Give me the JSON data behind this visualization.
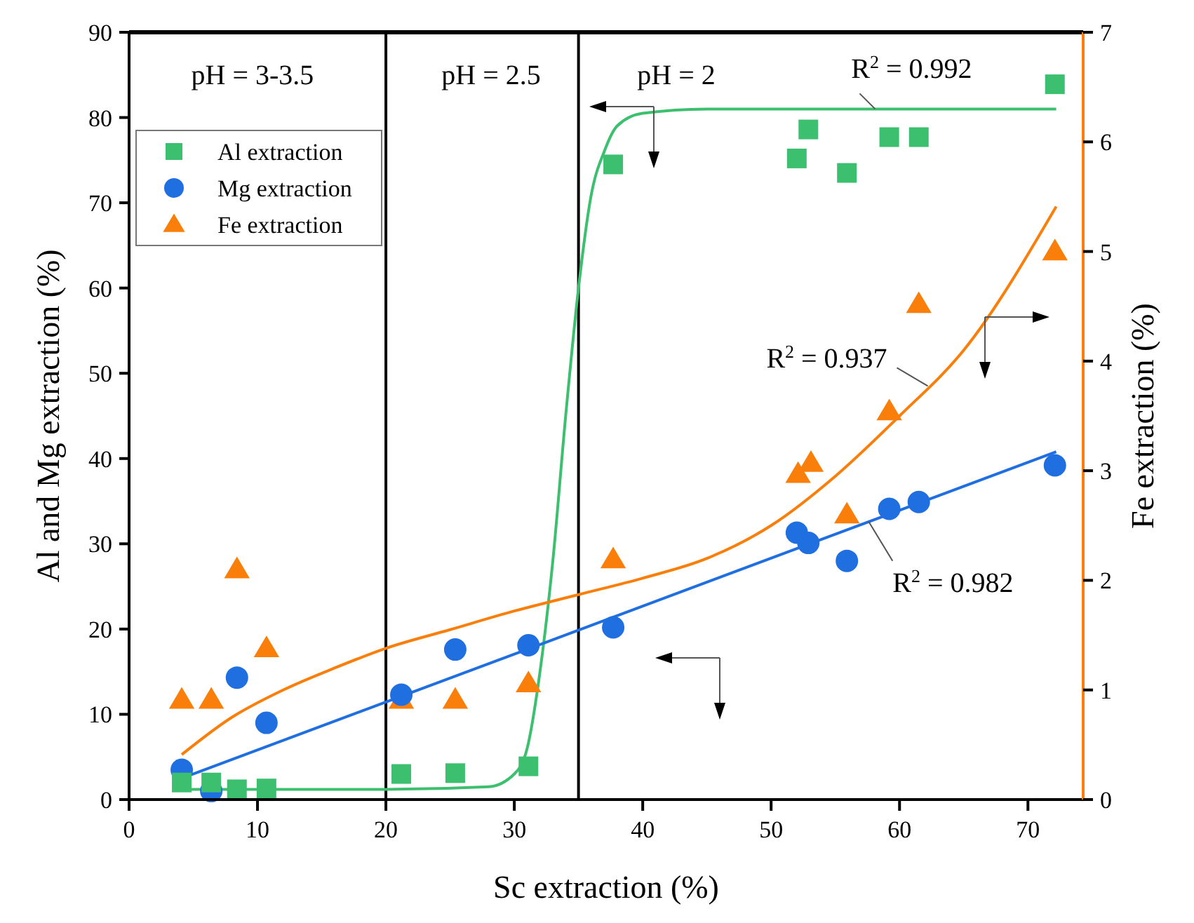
{
  "chart_data": {
    "type": "scatter",
    "xlabel": "Sc extraction (%)",
    "ylabel": "Al and Mg extraction (%)",
    "y2label": "Fe extraction (%)",
    "xlim": [
      0,
      74.3
    ],
    "xticks": [
      0,
      10,
      20,
      30,
      40,
      50,
      60,
      70
    ],
    "ylim": [
      0,
      90
    ],
    "yticks": [
      0,
      10,
      20,
      30,
      40,
      50,
      60,
      70,
      80,
      90
    ],
    "y2lim": [
      0,
      7
    ],
    "y2ticks": [
      0,
      1,
      2,
      3,
      4,
      5,
      6,
      7
    ],
    "grid": false,
    "legend": "top left",
    "series": [
      {
        "name": "Al extraction",
        "marker": "square",
        "color": "#3cbf6e",
        "x": [
          4.1,
          6.4,
          8.4,
          10.7,
          21.2,
          25.4,
          31.1,
          37.7,
          52.0,
          52.9,
          55.9,
          59.2,
          61.5,
          72.1
        ],
        "values": [
          2.0,
          2.0,
          1.2,
          1.3,
          3.0,
          3.1,
          3.9,
          74.5,
          75.2,
          78.6,
          73.5,
          77.7,
          77.7,
          83.9
        ]
      },
      {
        "name": "Mg extraction",
        "marker": "circle",
        "color": "#1f6fe0",
        "x": [
          4.1,
          6.4,
          8.4,
          10.7,
          21.2,
          25.4,
          31.1,
          37.7,
          52.0,
          52.9,
          55.9,
          59.2,
          61.5,
          72.1
        ],
        "values": [
          3.5,
          1.0,
          14.3,
          9.0,
          12.3,
          17.6,
          18.1,
          20.2,
          31.3,
          30.1,
          28.0,
          34.1,
          34.9,
          39.2
        ]
      },
      {
        "name": "Fe extraction",
        "marker": "triangle",
        "color": "#f97f0a",
        "axis": "y2",
        "x": [
          4.1,
          6.4,
          8.4,
          10.7,
          21.2,
          25.4,
          31.1,
          37.7,
          52.1,
          53.1,
          55.9,
          59.2,
          61.5,
          72.1
        ],
        "values": [
          0.91,
          0.91,
          2.1,
          1.38,
          0.91,
          0.91,
          1.06,
          2.19,
          2.97,
          3.07,
          2.6,
          3.54,
          4.52,
          5.0
        ]
      },
      {
        "type": "line",
        "color": "#3cbf6e",
        "line_style": "solid",
        "x": [
          4.1,
          20,
          28,
          30,
          31,
          32,
          33,
          34,
          35,
          36,
          37,
          38,
          40,
          45,
          72.2
        ],
        "values": [
          1.2,
          1.2,
          1.5,
          3,
          6,
          15,
          28,
          45,
          60,
          71,
          76,
          79,
          80.5,
          81,
          81
        ]
      },
      {
        "type": "line",
        "color": "#1f6fe0",
        "line_style": "solid",
        "x": [
          4.1,
          72.2
        ],
        "values": [
          2.5,
          40.8
        ]
      },
      {
        "type": "line",
        "color": "#f97f0a",
        "line_style": "solid",
        "axis": "y2",
        "x": [
          4.1,
          8,
          12,
          16,
          20,
          25,
          30,
          35,
          40,
          45,
          50,
          55,
          60,
          65,
          72.2
        ],
        "values": [
          0.41,
          0.75,
          1.0,
          1.2,
          1.38,
          1.55,
          1.72,
          1.87,
          2.02,
          2.2,
          2.5,
          2.95,
          3.5,
          4.1,
          5.41
        ]
      }
    ],
    "ref_lines": [
      {
        "axis": "x",
        "value": 20,
        "color": "#000000"
      },
      {
        "axis": "x",
        "value": 35,
        "color": "#000000"
      }
    ],
    "annotations": [
      "pH = 3-3.5",
      "pH = 2.5",
      "pH = 2",
      {
        "text": "R$^{2}$ = 0.992",
        "x": 58.1,
        "y": 81
      },
      {
        "text": "R$^{2}$ = 0.937",
        "x": 62.2,
        "y": 48.5
      },
      {
        "text": "R$^{2}$ = 0.982",
        "x": 57.6,
        "y": 32.6
      }
    ]
  }
}
